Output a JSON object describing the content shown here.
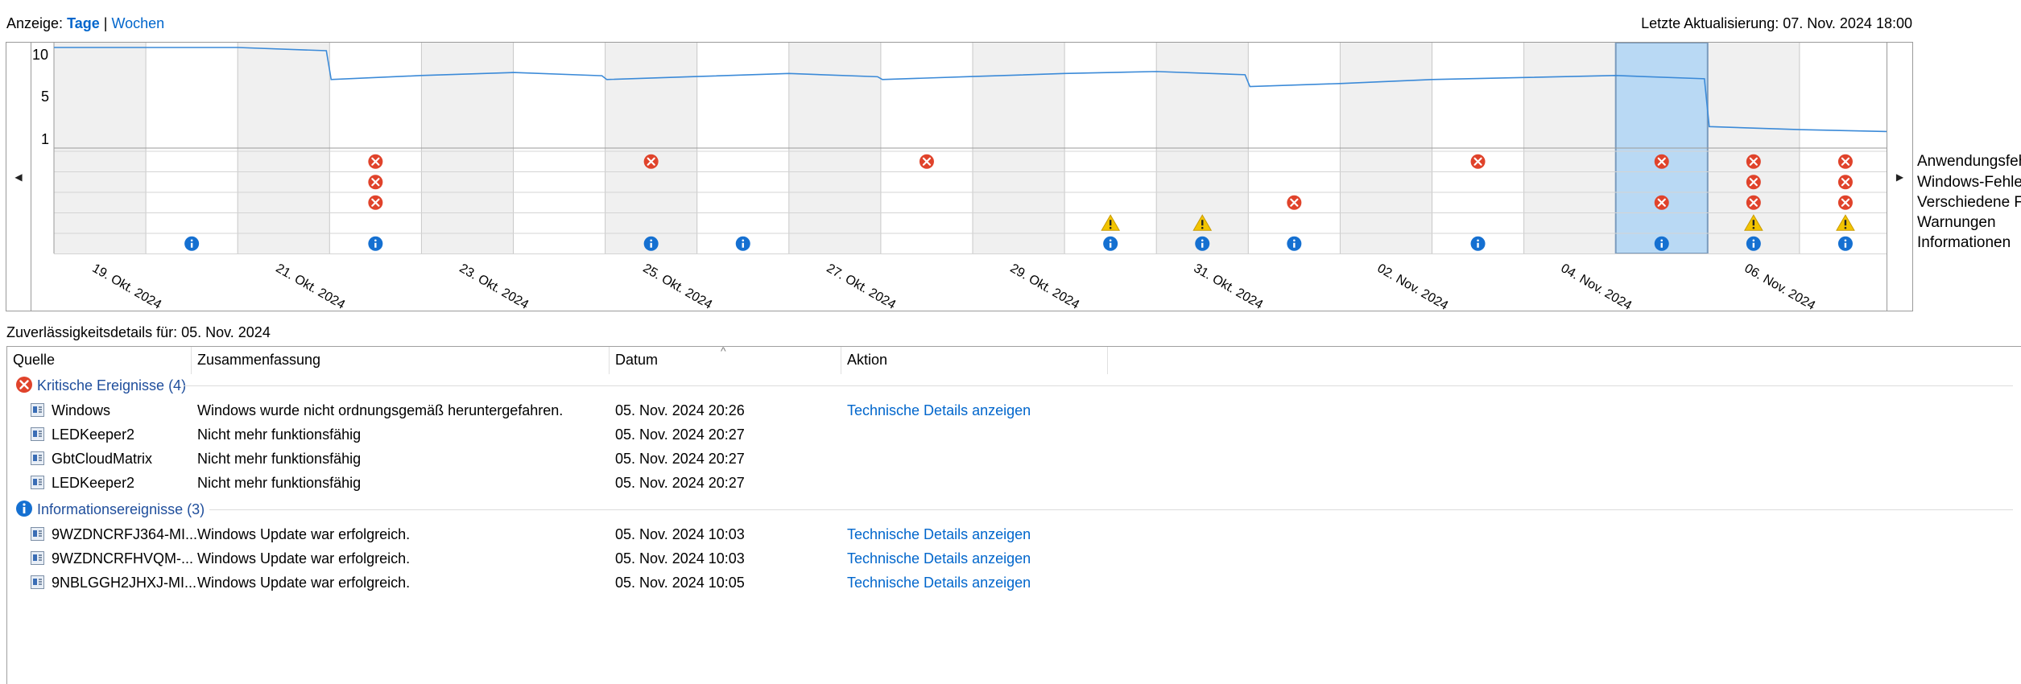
{
  "header": {
    "view_label": "Anzeige:",
    "view_days": "Tage",
    "view_sep": "|",
    "view_weeks": "Wochen",
    "last_update": "Letzte Aktualisierung: 07. Nov. 2024 18:00"
  },
  "chart": {
    "y_ticks": [
      "10",
      "5",
      "1"
    ],
    "categories": [
      "Anwendungsfeh",
      "Windows-Fehler",
      "Verschiedene Fel",
      "Warnungen",
      "Informationen"
    ],
    "date_labels": [
      "19. Okt. 2024",
      "21. Okt. 2024",
      "23. Okt. 2024",
      "25. Okt. 2024",
      "27. Okt. 2024",
      "29. Okt. 2024",
      "31. Okt. 2024",
      "02. Nov. 2024",
      "04. Nov. 2024",
      "06. Nov. 2024"
    ],
    "selected_day_index": 17,
    "reliability_index_per_day": [
      10,
      10,
      10,
      6.8,
      7.2,
      7.5,
      6.8,
      7.1,
      7.4,
      6.8,
      7.1,
      7.4,
      7.6,
      6.1,
      6.4,
      6.8,
      7.0,
      7.2,
      2.1,
      1.8,
      1.6
    ],
    "app_error_days": [
      3,
      6,
      9,
      15,
      17,
      18,
      19
    ],
    "windows_error_days": [
      3,
      18,
      19
    ],
    "misc_error_days": [
      3,
      13,
      17,
      18,
      19
    ],
    "warning_days": [
      11,
      12,
      18,
      19
    ],
    "info_days": [
      1,
      3,
      6,
      7,
      11,
      12,
      13,
      15,
      17,
      18,
      19
    ],
    "colors": {
      "line": "#3b8ad8",
      "error": "#e0432b",
      "warning": "#f2c400",
      "info": "#1570d1",
      "selection": "#b9d9f4",
      "grid_shade": "#f0f0f0"
    }
  },
  "details": {
    "title": "Zuverlässigkeitsdetails für: 05. Nov. 2024",
    "columns": [
      "Quelle",
      "Zusammenfassung",
      "Datum",
      "Aktion"
    ],
    "groups": [
      {
        "icon": "error-icon",
        "label": "Kritische Ereignisse (4)",
        "rows": [
          {
            "source": "Windows",
            "summary": "Windows wurde nicht ordnungsgemäß heruntergefahren.",
            "date": "05. Nov. 2024 20:26",
            "action": "Technische Details anzeigen"
          },
          {
            "source": "LEDKeeper2",
            "summary": "Nicht mehr funktionsfähig",
            "date": "05. Nov. 2024 20:27",
            "action": ""
          },
          {
            "source": "GbtCloudMatrix",
            "summary": "Nicht mehr funktionsfähig",
            "date": "05. Nov. 2024 20:27",
            "action": ""
          },
          {
            "source": "LEDKeeper2",
            "summary": "Nicht mehr funktionsfähig",
            "date": "05. Nov. 2024 20:27",
            "action": ""
          }
        ]
      },
      {
        "icon": "info-icon",
        "label": "Informationsereignisse (3)",
        "rows": [
          {
            "source": "9WZDNCRFJ364-MI...",
            "summary": "Windows Update war erfolgreich.",
            "date": "05. Nov. 2024 10:03",
            "action": "Technische Details anzeigen"
          },
          {
            "source": "9WZDNCRFHVQM-...",
            "summary": "Windows Update war erfolgreich.",
            "date": "05. Nov. 2024 10:03",
            "action": "Technische Details anzeigen"
          },
          {
            "source": "9NBLGGH2JHXJ-MI...",
            "summary": "Windows Update war erfolgreich.",
            "date": "05. Nov. 2024 10:05",
            "action": "Technische Details anzeigen"
          }
        ]
      }
    ]
  }
}
